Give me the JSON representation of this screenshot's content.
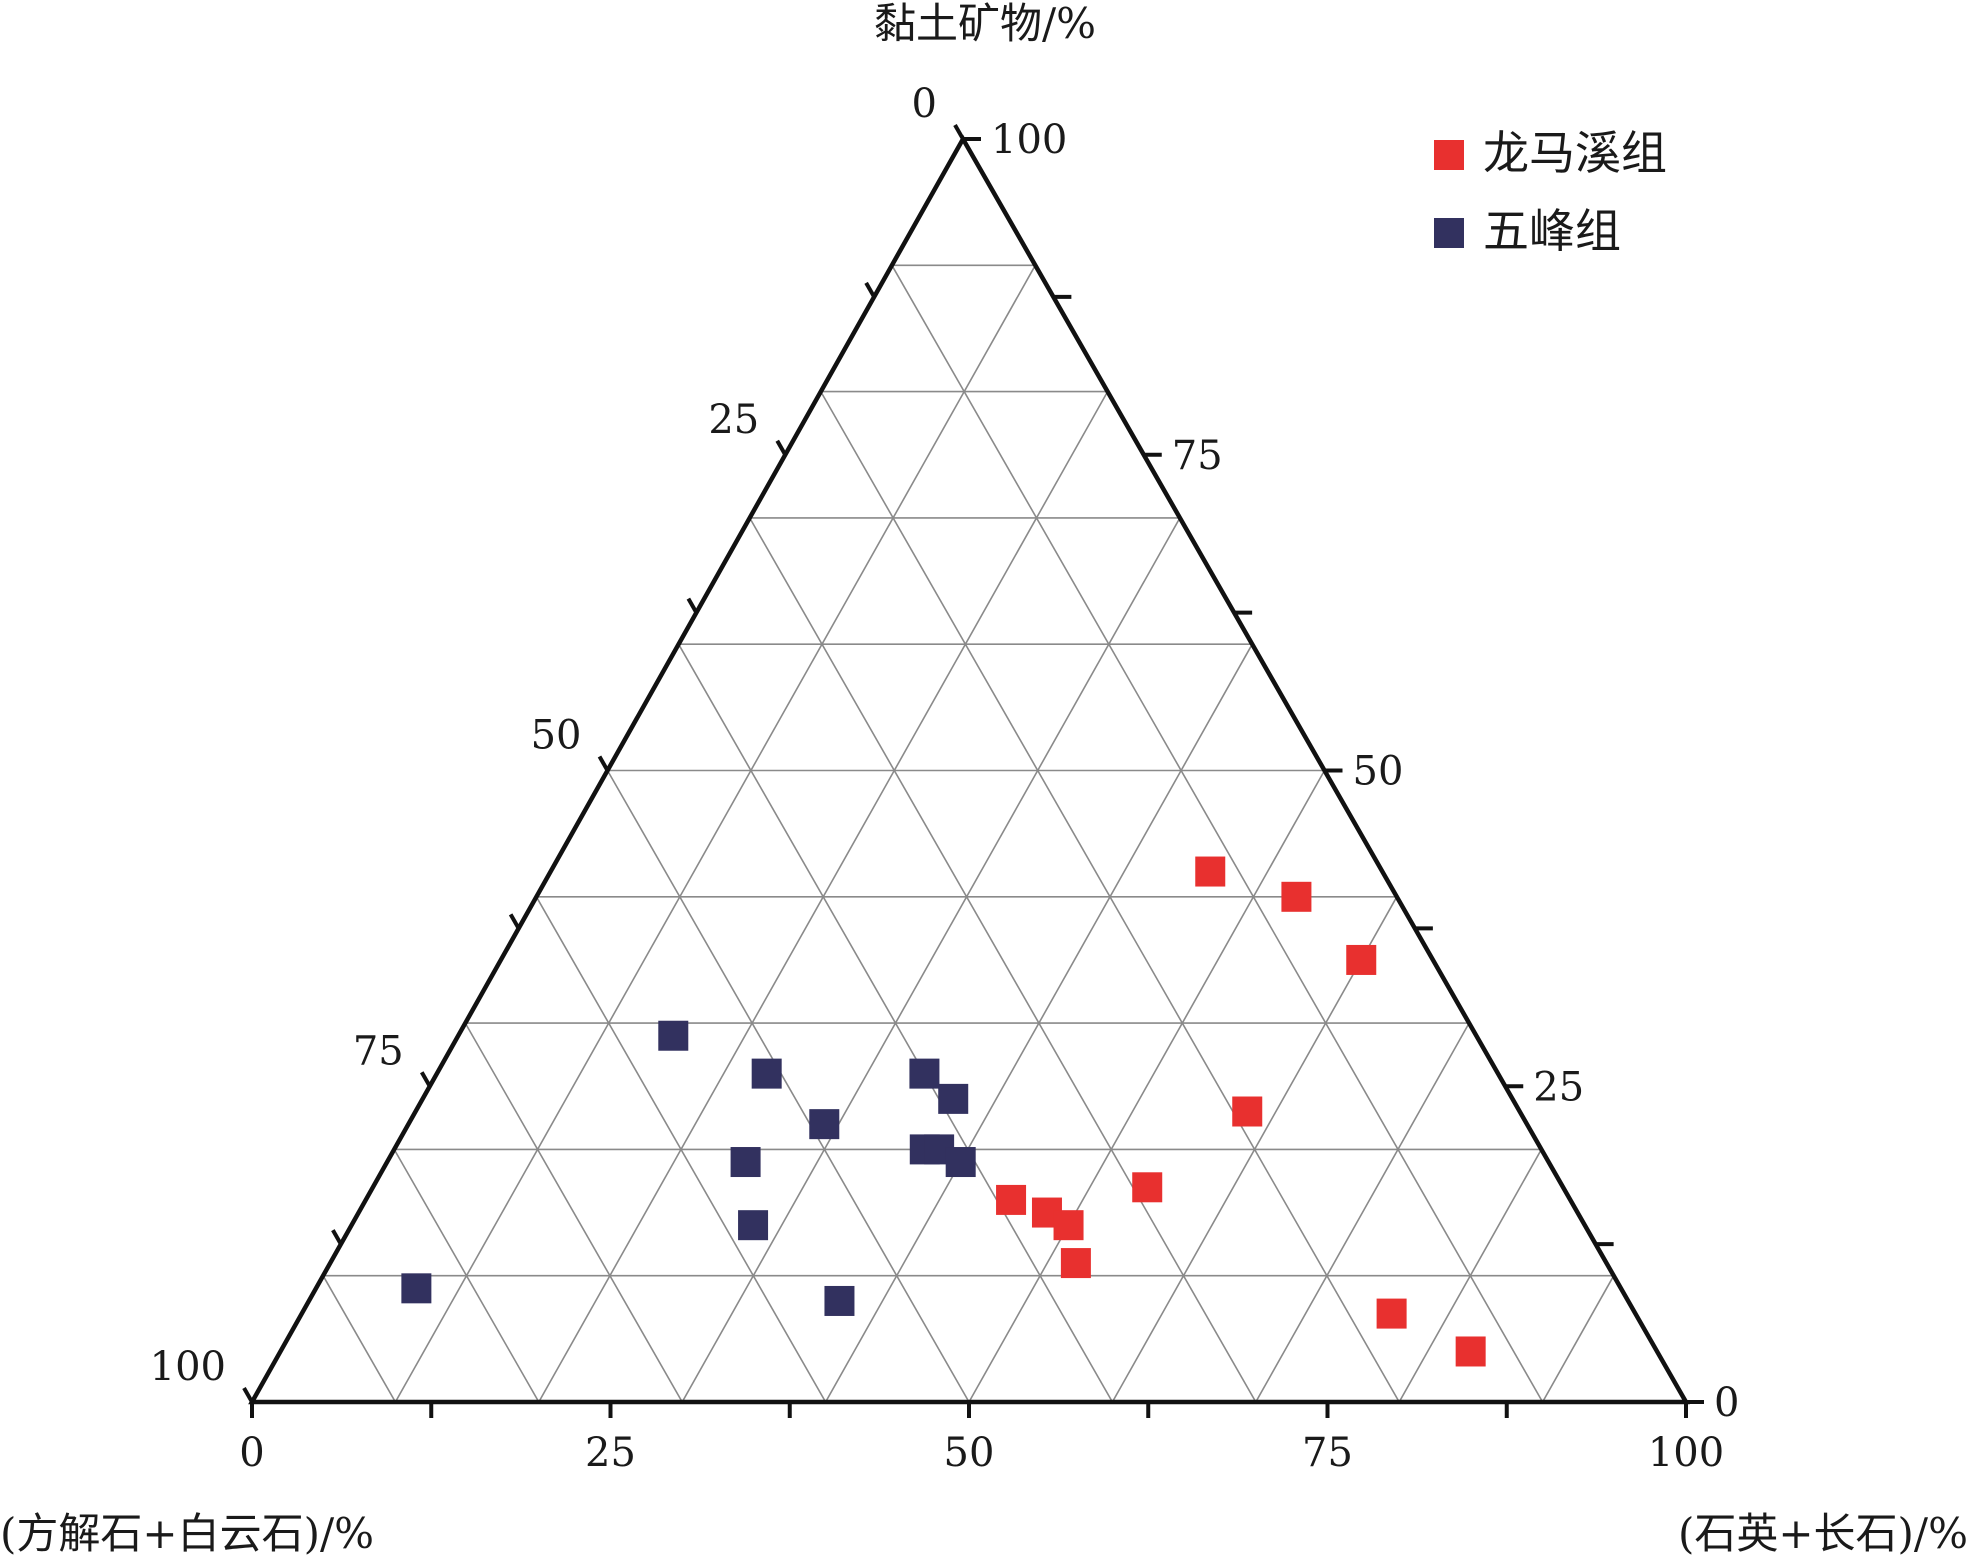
{
  "chart_data": {
    "type": "scatter",
    "subtype": "ternary",
    "axes": {
      "top": {
        "label": "黏土矿物/%",
        "ticks": [
          "0",
          "25",
          "50",
          "75",
          "100"
        ]
      },
      "left": {
        "label": "(方解石+白云石)/%",
        "ticks": [
          "0",
          "25",
          "50",
          "75",
          "100"
        ]
      },
      "right": {
        "label": "(石英+长石)/%",
        "ticks": [
          "0",
          "25",
          "50",
          "75",
          "100"
        ]
      }
    },
    "grid": true,
    "grid_step": 10,
    "legend_position": "top-right",
    "series": [
      {
        "name": "龙马溪组",
        "color": "#e8302f",
        "points": [
          {
            "clay": 42,
            "carb": 12,
            "qf": 46
          },
          {
            "clay": 40,
            "carb": 7,
            "qf": 53
          },
          {
            "clay": 35,
            "carb": 5,
            "qf": 60
          },
          {
            "clay": 23,
            "carb": 19,
            "qf": 58
          },
          {
            "clay": 17,
            "carb": 29,
            "qf": 54
          },
          {
            "clay": 16,
            "carb": 39,
            "qf": 45
          },
          {
            "clay": 15,
            "carb": 37,
            "qf": 48
          },
          {
            "clay": 14,
            "carb": 36,
            "qf": 50
          },
          {
            "clay": 11,
            "carb": 37,
            "qf": 52
          },
          {
            "clay": 7,
            "carb": 17,
            "qf": 76
          },
          {
            "clay": 4,
            "carb": 13,
            "qf": 83
          }
        ]
      },
      {
        "name": "五峰组",
        "color": "#32315f",
        "points": [
          {
            "clay": 29,
            "carb": 56,
            "qf": 15
          },
          {
            "clay": 26,
            "carb": 51,
            "qf": 23
          },
          {
            "clay": 26,
            "carb": 40,
            "qf": 34
          },
          {
            "clay": 24,
            "carb": 39,
            "qf": 37
          },
          {
            "clay": 22,
            "carb": 49,
            "qf": 29
          },
          {
            "clay": 20,
            "carb": 43,
            "qf": 37
          },
          {
            "clay": 20,
            "carb": 42,
            "qf": 38
          },
          {
            "clay": 19,
            "carb": 41,
            "qf": 40
          },
          {
            "clay": 19,
            "carb": 56,
            "qf": 25
          },
          {
            "clay": 14,
            "carb": 58,
            "qf": 28
          },
          {
            "clay": 9,
            "carb": 84,
            "qf": 7
          },
          {
            "clay": 8,
            "carb": 55,
            "qf": 37
          }
        ]
      }
    ]
  }
}
